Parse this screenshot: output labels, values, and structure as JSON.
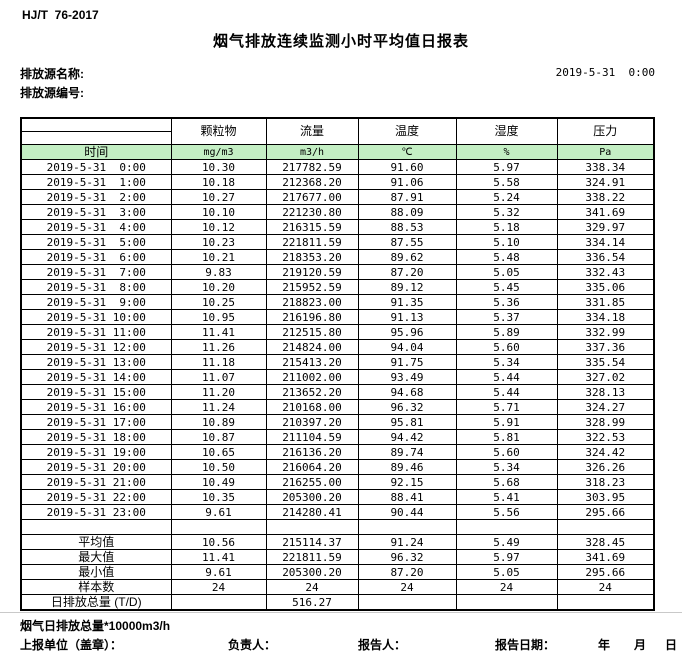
{
  "header": {
    "standard": "HJ/T  76-2017",
    "title": "烟气排放连续监测小时平均值日报表",
    "source_name_label": "排放源名称:",
    "source_code_label": "排放源编号:",
    "datetime": "2019-5-31  0:00"
  },
  "table": {
    "pollutant_headers": [
      "颗粒物",
      "流量",
      "温度",
      "湿度",
      "压力"
    ],
    "time_header": "时间",
    "units": [
      "mg/m3",
      "m3/h",
      "℃",
      "%",
      "Pa"
    ],
    "rows": [
      [
        "2019-5-31  0:00",
        "10.30",
        "217782.59",
        "91.60",
        "5.97",
        "338.34"
      ],
      [
        "2019-5-31  1:00",
        "10.18",
        "212368.20",
        "91.06",
        "5.58",
        "324.91"
      ],
      [
        "2019-5-31  2:00",
        "10.27",
        "217677.00",
        "87.91",
        "5.24",
        "338.22"
      ],
      [
        "2019-5-31  3:00",
        "10.10",
        "221230.80",
        "88.09",
        "5.32",
        "341.69"
      ],
      [
        "2019-5-31  4:00",
        "10.12",
        "216315.59",
        "88.53",
        "5.18",
        "329.97"
      ],
      [
        "2019-5-31  5:00",
        "10.23",
        "221811.59",
        "87.55",
        "5.10",
        "334.14"
      ],
      [
        "2019-5-31  6:00",
        "10.21",
        "218353.20",
        "89.62",
        "5.48",
        "336.54"
      ],
      [
        "2019-5-31  7:00",
        "9.83",
        "219120.59",
        "87.20",
        "5.05",
        "332.43"
      ],
      [
        "2019-5-31  8:00",
        "10.20",
        "215952.59",
        "89.12",
        "5.45",
        "335.06"
      ],
      [
        "2019-5-31  9:00",
        "10.25",
        "218823.00",
        "91.35",
        "5.36",
        "331.85"
      ],
      [
        "2019-5-31 10:00",
        "10.95",
        "216196.80",
        "91.13",
        "5.37",
        "334.18"
      ],
      [
        "2019-5-31 11:00",
        "11.41",
        "212515.80",
        "95.96",
        "5.89",
        "332.99"
      ],
      [
        "2019-5-31 12:00",
        "11.26",
        "214824.00",
        "94.04",
        "5.60",
        "337.36"
      ],
      [
        "2019-5-31 13:00",
        "11.18",
        "215413.20",
        "91.75",
        "5.34",
        "335.54"
      ],
      [
        "2019-5-31 14:00",
        "11.07",
        "211002.00",
        "93.49",
        "5.44",
        "327.02"
      ],
      [
        "2019-5-31 15:00",
        "11.20",
        "213652.20",
        "94.68",
        "5.44",
        "328.13"
      ],
      [
        "2019-5-31 16:00",
        "11.24",
        "210168.00",
        "96.32",
        "5.71",
        "324.27"
      ],
      [
        "2019-5-31 17:00",
        "10.89",
        "210397.20",
        "95.81",
        "5.91",
        "328.99"
      ],
      [
        "2019-5-31 18:00",
        "10.87",
        "211104.59",
        "94.42",
        "5.81",
        "322.53"
      ],
      [
        "2019-5-31 19:00",
        "10.65",
        "216136.20",
        "89.74",
        "5.60",
        "324.42"
      ],
      [
        "2019-5-31 20:00",
        "10.50",
        "216064.20",
        "89.46",
        "5.34",
        "326.26"
      ],
      [
        "2019-5-31 21:00",
        "10.49",
        "216255.00",
        "92.15",
        "5.68",
        "318.23"
      ],
      [
        "2019-5-31 22:00",
        "10.35",
        "205300.20",
        "88.41",
        "5.41",
        "303.95"
      ],
      [
        "2019-5-31 23:00",
        "9.61",
        "214280.41",
        "90.44",
        "5.56",
        "295.66"
      ]
    ],
    "summary": [
      {
        "label": "平均值",
        "values": [
          "10.56",
          "215114.37",
          "91.24",
          "5.49",
          "328.45"
        ]
      },
      {
        "label": "最大值",
        "values": [
          "11.41",
          "221811.59",
          "96.32",
          "5.97",
          "341.69"
        ]
      },
      {
        "label": "最小值",
        "values": [
          "9.61",
          "205300.20",
          "87.20",
          "5.05",
          "295.66"
        ]
      },
      {
        "label": "样本数",
        "values": [
          "24",
          "24",
          "24",
          "24",
          "24"
        ]
      },
      {
        "label": "日排放总量 (T/D)",
        "values": [
          "",
          "516.27",
          "",
          "",
          ""
        ]
      }
    ]
  },
  "footer": {
    "note": "烟气日排放总量*10000m3/h",
    "report_unit_label": "上报单位（盖章）：",
    "responsible_label": "负责人：",
    "reporter_label": "报告人：",
    "report_date_label": "报告日期：",
    "year_label": "年",
    "month_label": "月",
    "day_label": "日"
  }
}
